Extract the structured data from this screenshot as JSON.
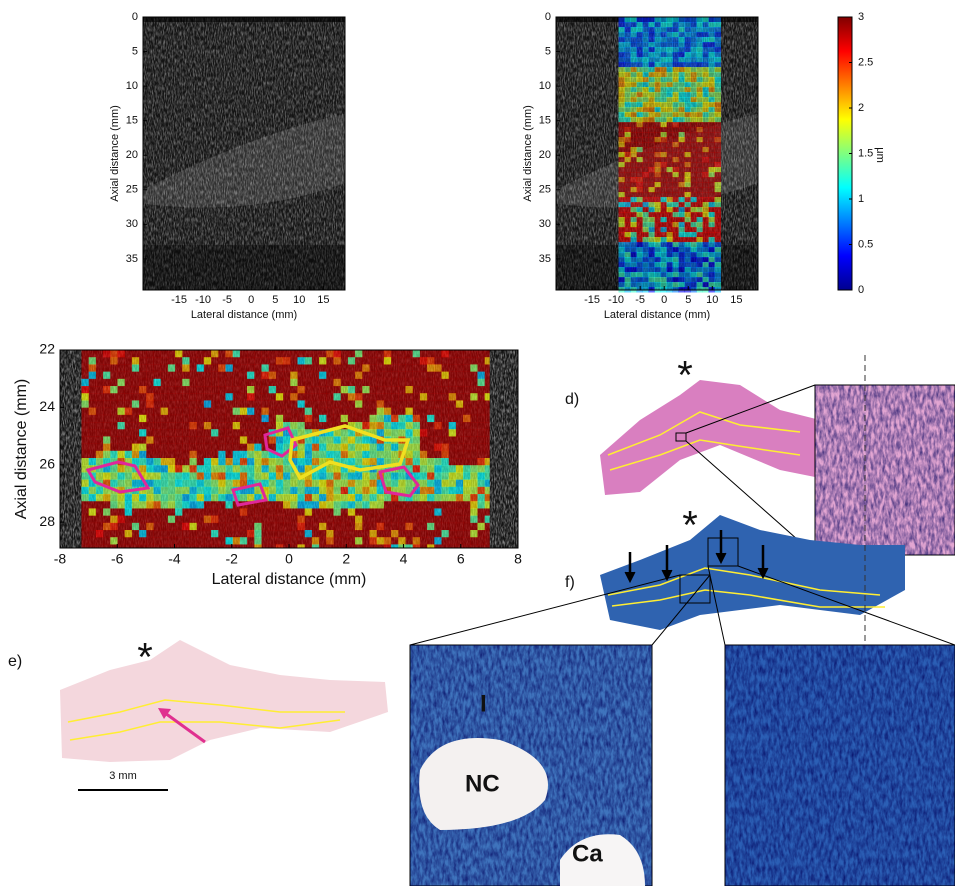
{
  "plots": [
    {
      "xlabel": "Lateral distance (mm)",
      "ylabel": "Axial distance (mm)",
      "xlim": [
        -22.5,
        19.5
      ],
      "ylim": [
        0,
        39.5
      ],
      "xticks": [
        -15,
        -10,
        -5,
        0,
        5,
        10,
        15
      ],
      "yticks": [
        0,
        5,
        10,
        15,
        20,
        25,
        30,
        35
      ]
    },
    {
      "xlabel": "Lateral distance (mm)",
      "ylabel": "Axial distance (mm)",
      "xlim": [
        -22.5,
        19.5
      ],
      "ylim": [
        0,
        39.5
      ],
      "xticks": [
        -15,
        -10,
        -5,
        0,
        5,
        10,
        15
      ],
      "yticks": [
        0,
        5,
        10,
        15,
        20,
        25,
        30,
        35
      ]
    },
    {
      "xlabel": "Lateral distance (mm)",
      "ylabel": "Axial distance (mm)",
      "xlim": [
        -8,
        8
      ],
      "ylim": [
        22,
        28.9
      ],
      "xticks": [
        -8,
        -6,
        -4,
        -2,
        0,
        2,
        4,
        6,
        8
      ],
      "yticks": [
        22,
        24,
        26,
        28
      ]
    }
  ],
  "colorbar": {
    "label": "μm",
    "lim": [
      0,
      3
    ],
    "ticks": [
      0,
      0.5,
      1,
      1.5,
      2,
      2.5,
      3
    ]
  },
  "histology": {
    "panel_d": "d)",
    "panel_e": "e)",
    "panel_f": "f)",
    "markers": [
      "*",
      "*",
      "*"
    ],
    "inset_labels": [
      "I",
      "NC",
      "Ca"
    ],
    "scale_bar": "3 mm"
  }
}
